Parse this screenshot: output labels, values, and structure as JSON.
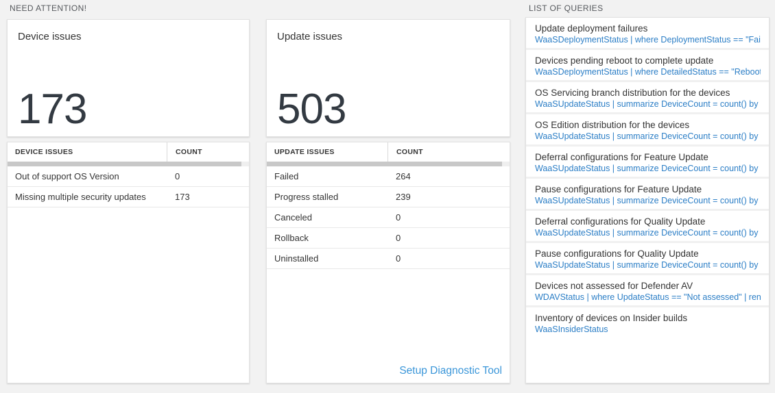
{
  "page": {
    "background": "#f2f2f2"
  },
  "need_attention": {
    "header": "NEED ATTENTION!",
    "device_tile": {
      "title": "Device issues",
      "count": "173"
    },
    "device_table": {
      "columns": [
        "DEVICE ISSUES",
        "COUNT"
      ],
      "rows": [
        {
          "label": "Out of support OS Version",
          "count": "0"
        },
        {
          "label": "Missing multiple security updates",
          "count": "173"
        }
      ]
    },
    "update_tile": {
      "title": "Update issues",
      "count": "503"
    },
    "update_table": {
      "columns": [
        "UPDATE ISSUES",
        "COUNT"
      ],
      "rows": [
        {
          "label": "Failed",
          "count": "264"
        },
        {
          "label": "Progress stalled",
          "count": "239"
        },
        {
          "label": "Canceled",
          "count": "0"
        },
        {
          "label": "Rollback",
          "count": "0"
        },
        {
          "label": "Uninstalled",
          "count": "0"
        }
      ]
    },
    "setup_link": "Setup Diagnostic Tool"
  },
  "queries": {
    "header": "LIST OF QUERIES",
    "items": [
      {
        "title": "Update deployment failures",
        "query": "WaaSDeploymentStatus | where DeploymentStatus == \"Failed\" |..."
      },
      {
        "title": "Devices pending reboot to complete update",
        "query": "WaaSDeploymentStatus | where DetailedStatus == \"Reboot pend..."
      },
      {
        "title": "OS Servicing branch distribution for the devices",
        "query": "WaaSUpdateStatus | summarize DeviceCount = count() by OSSer..."
      },
      {
        "title": "OS Edition distribution for the devices",
        "query": "WaaSUpdateStatus | summarize DeviceCount = count() by OSEdit..."
      },
      {
        "title": "Deferral configurations for Feature Update",
        "query": "WaaSUpdateStatus | summarize DeviceCount = count() by Featur..."
      },
      {
        "title": "Pause configurations for Feature Update",
        "query": "WaaSUpdateStatus | summarize DeviceCount = count() by Featur..."
      },
      {
        "title": "Deferral configurations for Quality Update",
        "query": "WaaSUpdateStatus | summarize DeviceCount = count() by Qualit..."
      },
      {
        "title": "Pause configurations for Quality Update",
        "query": "WaaSUpdateStatus | summarize DeviceCount = count() by Qualit..."
      },
      {
        "title": "Devices not assessed for Defender AV",
        "query": "WDAVStatus | where UpdateStatus == \"Not assessed\" | render ta..."
      },
      {
        "title": "Inventory of devices on Insider builds",
        "query": "WaaSInsiderStatus"
      }
    ]
  },
  "colors": {
    "query_blue": "#2b7ec6",
    "link_blue": "#3a96d9",
    "count_dark": "#333a42",
    "section_label_gray": "#55585c"
  }
}
